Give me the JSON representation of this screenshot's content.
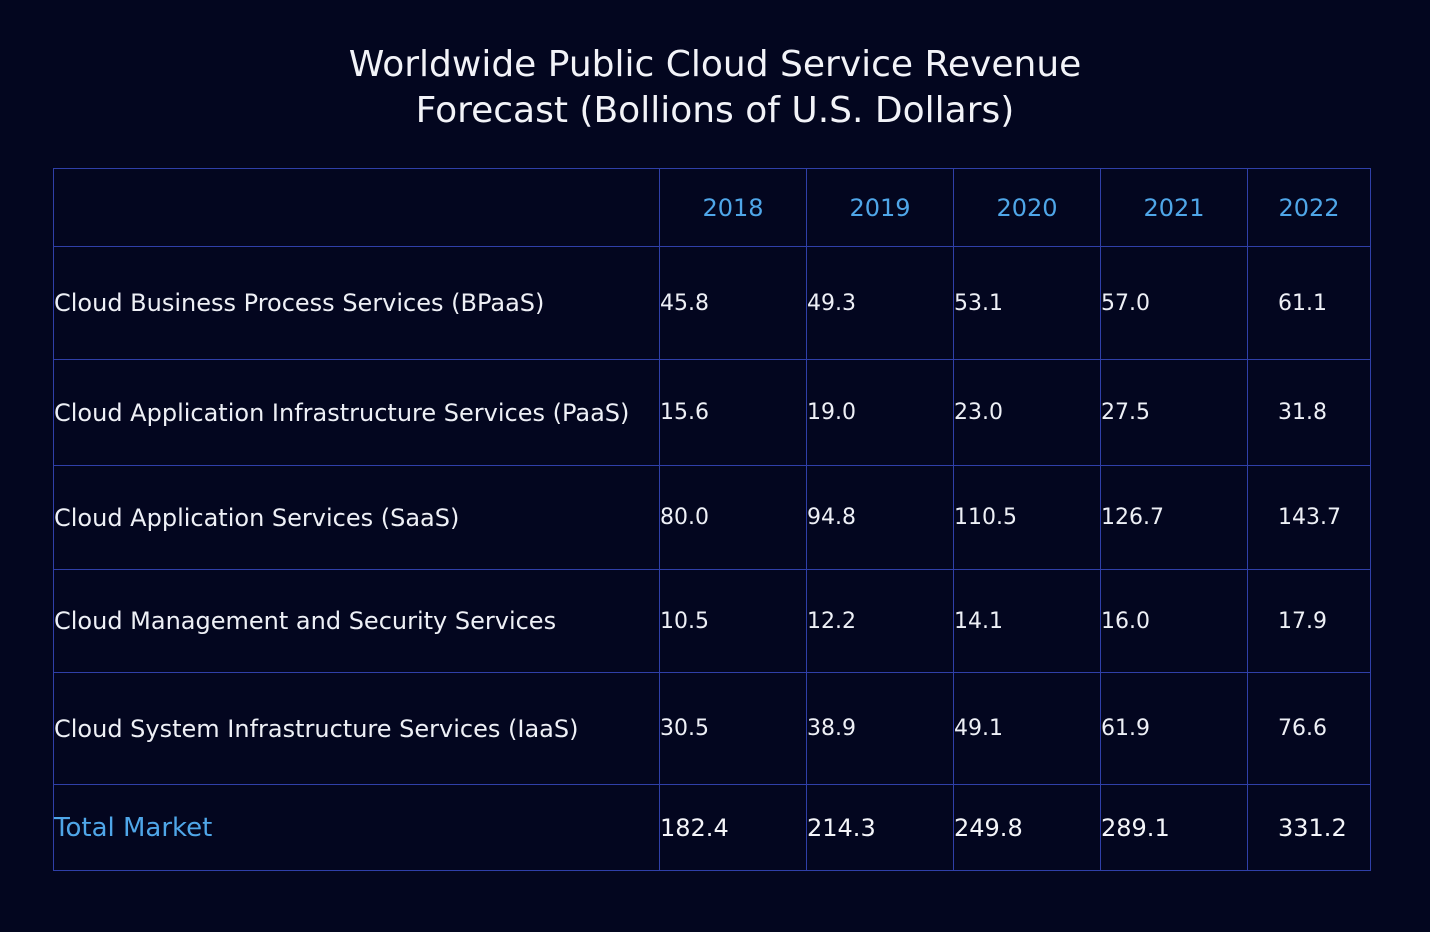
{
  "chart_data": {
    "type": "table",
    "title": "Worldwide Public Cloud Service Revenue Forecast (Bollions of U.S. Dollars)",
    "title_lines": [
      "Worldwide Public Cloud Service Revenue",
      "Forecast (Bollions of U.S. Dollars)"
    ],
    "columns": [
      "",
      "2018",
      "2019",
      "2020",
      "2021",
      "2022"
    ],
    "rows": [
      {
        "label": "Cloud Business Process Services (BPaaS)",
        "values": [
          "45.8",
          "49.3",
          "53.1",
          "57.0",
          "61.1"
        ]
      },
      {
        "label": "Cloud Application Infrastructure Services (PaaS)",
        "values": [
          "15.6",
          "19.0",
          "23.0",
          "27.5",
          "31.8"
        ]
      },
      {
        "label": "Cloud Application Services (SaaS)",
        "values": [
          "80.0",
          "94.8",
          "110.5",
          "126.7",
          "143.7"
        ]
      },
      {
        "label": "Cloud Management and Security Services",
        "values": [
          "10.5",
          "12.2",
          "14.1",
          "16.0",
          "17.9"
        ]
      },
      {
        "label": "Cloud System Infrastructure Services (IaaS)",
        "values": [
          "30.5",
          "38.9",
          "49.1",
          "61.9",
          "76.6"
        ]
      },
      {
        "label": "Total Market",
        "values": [
          "182.4",
          "214.3",
          "249.8",
          "289.1",
          "331.2"
        ]
      }
    ],
    "colors": {
      "background": "#03061f",
      "grid": "#2f3fa8",
      "header_text": "#4fa6e8",
      "total_label": "#4fa6e8",
      "text": "#eef0f6"
    }
  }
}
